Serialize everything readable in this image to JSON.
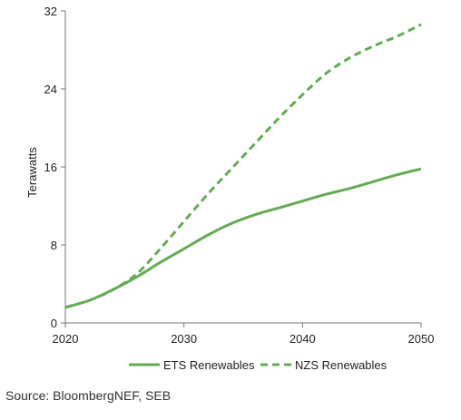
{
  "chart_data": {
    "type": "line",
    "title": "",
    "xlabel": "",
    "ylabel": "Terawatts",
    "xlim": [
      2020,
      2050
    ],
    "ylim": [
      0,
      32
    ],
    "x_ticks": [
      2020,
      2030,
      2040,
      2050
    ],
    "y_ticks": [
      0,
      8,
      16,
      24,
      32
    ],
    "grid": false,
    "legend_position": "bottom",
    "series": [
      {
        "name": "ETS Renewables",
        "style": "solid",
        "color": "#66aa55",
        "x": [
          2020,
          2022,
          2024,
          2026,
          2028,
          2030,
          2032,
          2034,
          2036,
          2038,
          2040,
          2042,
          2044,
          2046,
          2048,
          2050
        ],
        "values": [
          1.6,
          2.3,
          3.4,
          4.7,
          6.2,
          7.6,
          9.0,
          10.2,
          11.1,
          11.8,
          12.5,
          13.2,
          13.8,
          14.5,
          15.2,
          15.8
        ]
      },
      {
        "name": "NZS Renewables",
        "style": "dashed",
        "color": "#66aa55",
        "x": [
          2020,
          2022,
          2024,
          2026,
          2028,
          2030,
          2032,
          2034,
          2036,
          2038,
          2040,
          2042,
          2044,
          2046,
          2048,
          2050
        ],
        "values": [
          1.6,
          2.3,
          3.4,
          5.0,
          7.6,
          10.4,
          13.2,
          15.8,
          18.4,
          21.0,
          23.4,
          25.6,
          27.2,
          28.4,
          29.4,
          30.6
        ]
      }
    ]
  },
  "source": "Source: BloombergNEF, SEB"
}
